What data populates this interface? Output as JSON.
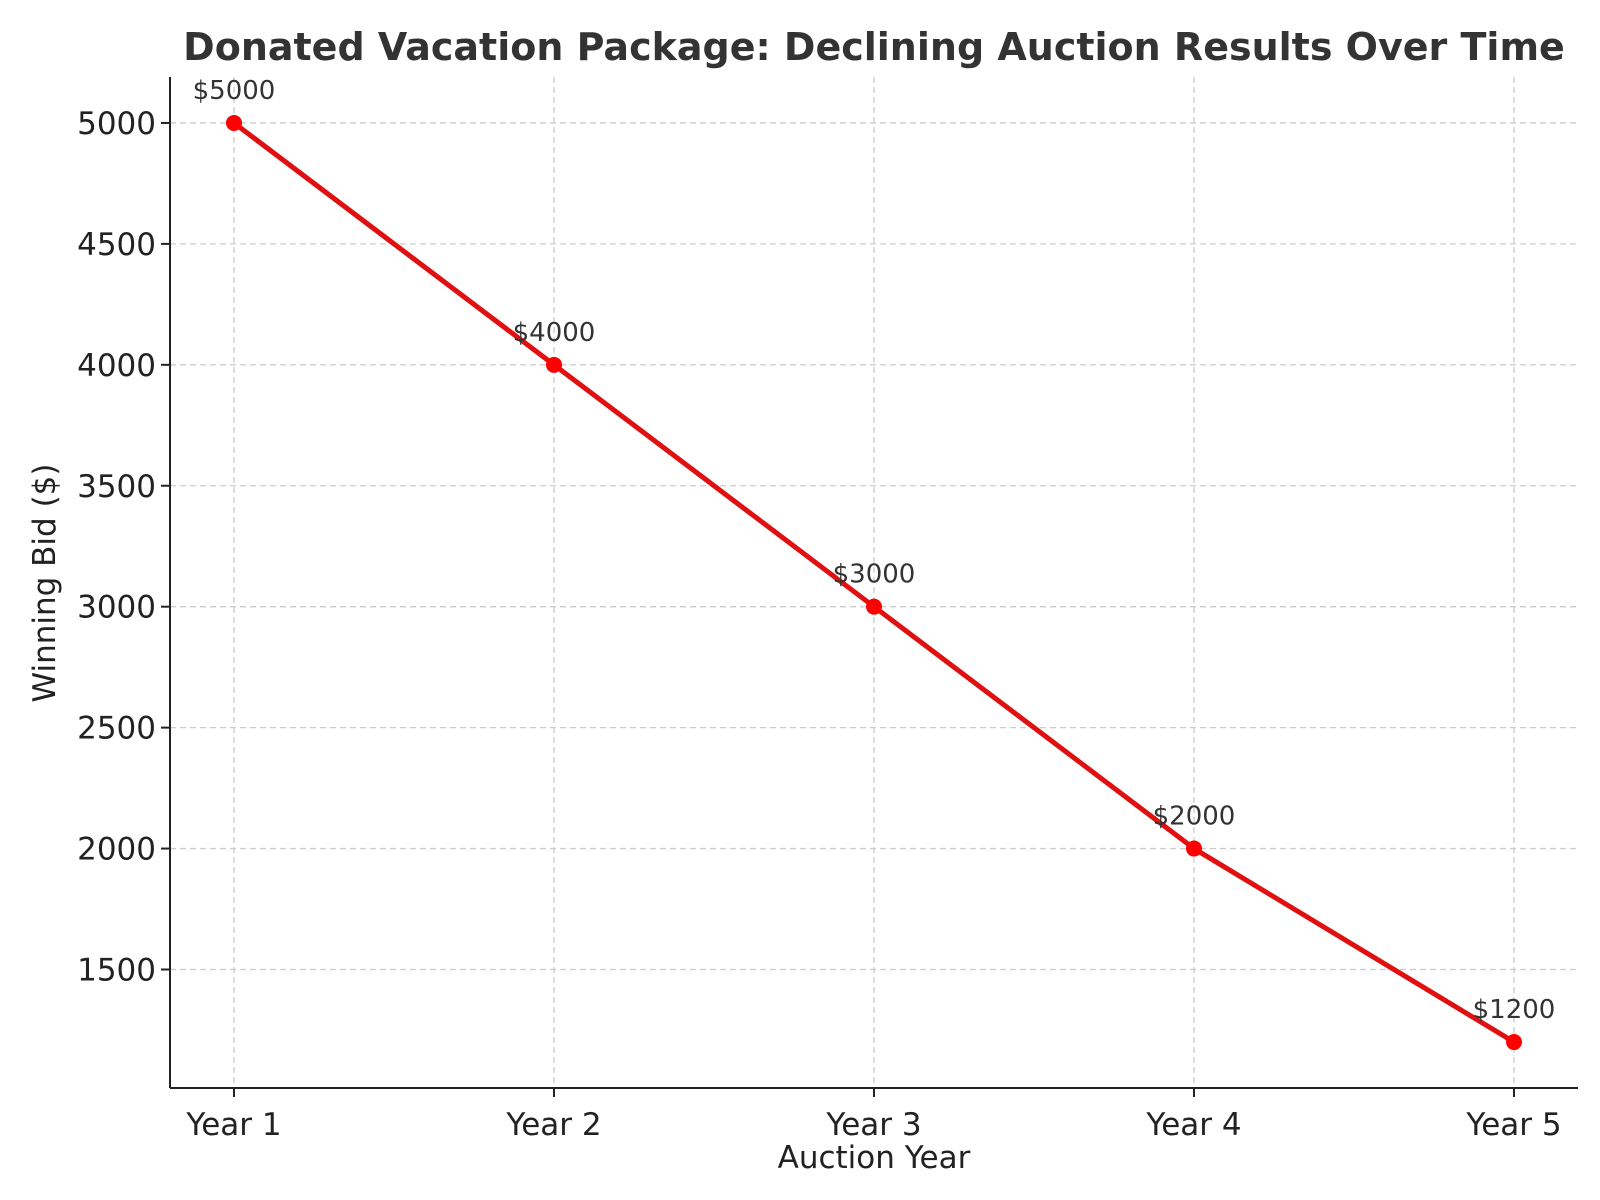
{
  "chart_data": {
    "type": "line",
    "title": "Donated Vacation Package: Declining Auction Results Over Time",
    "xlabel": "Auction Year",
    "ylabel": "Winning Bid ($)",
    "categories": [
      "Year 1",
      "Year 2",
      "Year 3",
      "Year 4",
      "Year 5"
    ],
    "series": [
      {
        "name": "Winning Bid",
        "values": [
          5000,
          4000,
          3000,
          2000,
          1200
        ],
        "labels": [
          "$5000",
          "$4000",
          "$3000",
          "$2000",
          "$1200"
        ]
      }
    ],
    "yticks": [
      1500,
      2000,
      2500,
      3000,
      3500,
      4000,
      4500,
      5000
    ],
    "ylim": [
      1010,
      5190
    ],
    "grid": true,
    "line_color": "#e01010",
    "marker_color": "#ff0000"
  }
}
